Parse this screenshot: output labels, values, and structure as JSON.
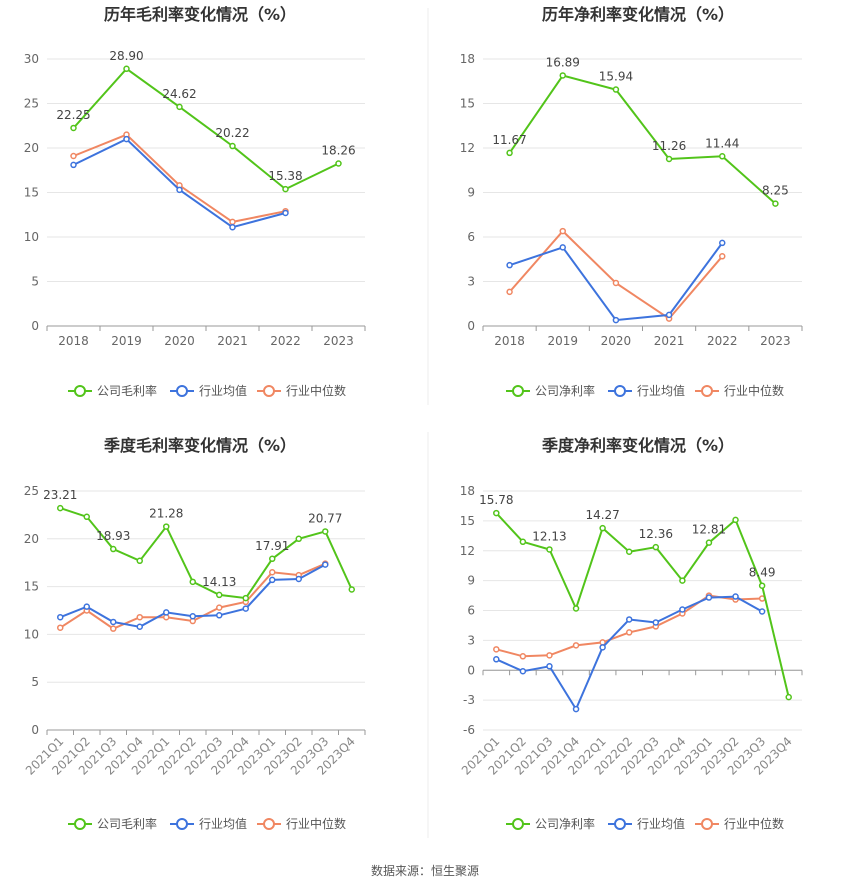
{
  "colors": {
    "company": "#52c41a",
    "avg": "#3d73dd",
    "median": "#f08762"
  },
  "source_text": "数据来源：恒生聚源",
  "chart_data": [
    {
      "type": "line",
      "title": "历年毛利率变化情况（%）",
      "categories": [
        "2018",
        "2019",
        "2020",
        "2021",
        "2022",
        "2023"
      ],
      "y_ticks": [
        "0",
        "5",
        "10",
        "15",
        "20",
        "25",
        "30"
      ],
      "ylim": [
        0,
        30
      ],
      "series": [
        {
          "name": "公司毛利率",
          "values": [
            22.25,
            28.9,
            24.62,
            20.22,
            15.38,
            18.26
          ],
          "labels": [
            "22.25",
            "28.90",
            "24.62",
            "20.22",
            "15.38",
            "18.26"
          ]
        },
        {
          "name": "行业均值",
          "values": [
            18.1,
            21.0,
            15.3,
            11.1,
            12.7,
            null
          ]
        },
        {
          "name": "行业中位数",
          "values": [
            19.1,
            21.5,
            15.8,
            11.7,
            12.9,
            null
          ]
        }
      ]
    },
    {
      "type": "line",
      "title": "历年净利率变化情况（%）",
      "categories": [
        "2018",
        "2019",
        "2020",
        "2021",
        "2022",
        "2023"
      ],
      "y_ticks": [
        "0",
        "3",
        "6",
        "9",
        "12",
        "15",
        "18"
      ],
      "ylim": [
        0,
        18
      ],
      "series": [
        {
          "name": "公司净利率",
          "values": [
            11.67,
            16.89,
            15.94,
            11.26,
            11.44,
            8.25
          ],
          "labels": [
            "11.67",
            "16.89",
            "15.94",
            "11.26",
            "11.44",
            "8.25"
          ]
        },
        {
          "name": "行业均值",
          "values": [
            4.1,
            5.3,
            0.4,
            0.75,
            5.6,
            null
          ]
        },
        {
          "name": "行业中位数",
          "values": [
            2.3,
            6.4,
            2.9,
            0.5,
            4.7,
            null
          ]
        }
      ]
    },
    {
      "type": "line",
      "title": "季度毛利率变化情况（%）",
      "categories": [
        "2021Q1",
        "2021Q2",
        "2021Q3",
        "2021Q4",
        "2022Q1",
        "2022Q2",
        "2022Q3",
        "2022Q4",
        "2023Q1",
        "2023Q2",
        "2023Q3",
        "2023Q4"
      ],
      "y_ticks": [
        "0",
        "5",
        "10",
        "15",
        "20",
        "25"
      ],
      "ylim": [
        0,
        25
      ],
      "series": [
        {
          "name": "公司毛利率",
          "values": [
            23.21,
            22.3,
            18.93,
            17.7,
            21.28,
            15.5,
            14.13,
            13.8,
            17.91,
            20.0,
            20.77,
            14.7
          ],
          "labels": [
            "23.21",
            "",
            "18.93",
            "",
            "21.28",
            "",
            "14.13",
            "",
            "17.91",
            "",
            "20.77",
            ""
          ]
        },
        {
          "name": "行业均值",
          "values": [
            11.8,
            12.9,
            11.3,
            10.8,
            12.3,
            11.9,
            12.0,
            12.7,
            15.7,
            15.8,
            17.3,
            null
          ]
        },
        {
          "name": "行业中位数",
          "values": [
            10.7,
            12.5,
            10.6,
            11.8,
            11.8,
            11.4,
            12.8,
            13.4,
            16.5,
            16.2,
            17.4,
            null
          ]
        }
      ]
    },
    {
      "type": "line",
      "title": "季度净利率变化情况（%）",
      "categories": [
        "2021Q1",
        "2021Q2",
        "2021Q3",
        "2021Q4",
        "2022Q1",
        "2022Q2",
        "2022Q3",
        "2022Q4",
        "2023Q1",
        "2023Q2",
        "2023Q3",
        "2023Q4"
      ],
      "y_ticks": [
        "-6",
        "-3",
        "0",
        "3",
        "6",
        "9",
        "12",
        "15",
        "18"
      ],
      "ylim": [
        -6,
        18
      ],
      "series": [
        {
          "name": "公司净利率",
          "values": [
            15.78,
            12.9,
            12.13,
            6.2,
            14.27,
            11.9,
            12.36,
            9.0,
            12.81,
            15.1,
            8.49,
            -2.7
          ],
          "labels": [
            "15.78",
            "",
            "12.13",
            "",
            "14.27",
            "",
            "12.36",
            "",
            "12.81",
            "",
            "8.49",
            ""
          ]
        },
        {
          "name": "行业均值",
          "values": [
            1.1,
            -0.1,
            0.4,
            -3.9,
            2.3,
            5.1,
            4.8,
            6.1,
            7.3,
            7.4,
            5.9,
            null
          ]
        },
        {
          "name": "行业中位数",
          "values": [
            2.1,
            1.4,
            1.5,
            2.5,
            2.8,
            3.8,
            4.4,
            5.7,
            7.5,
            7.1,
            7.2,
            null
          ]
        }
      ]
    }
  ]
}
